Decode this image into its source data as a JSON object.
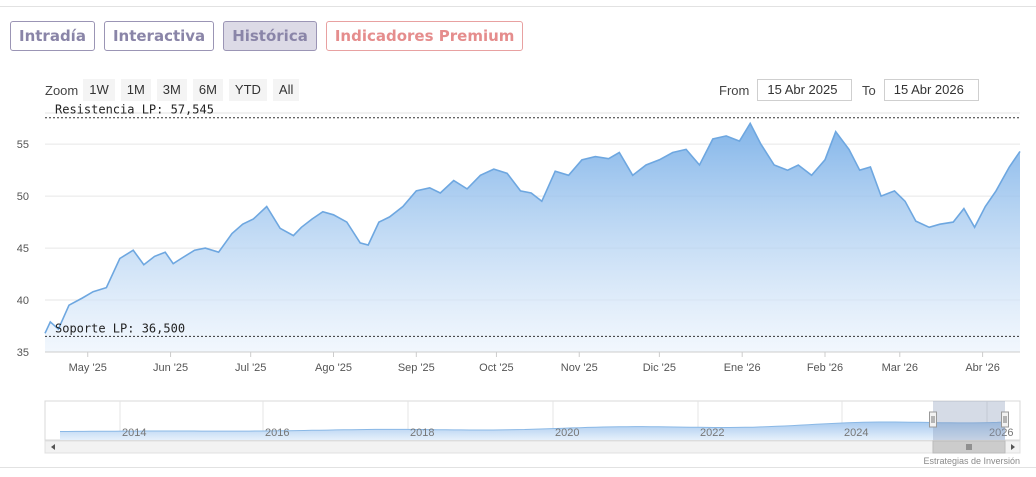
{
  "tabs": [
    {
      "label": "Intradía",
      "active": false
    },
    {
      "label": "Interactiva",
      "active": false
    },
    {
      "label": "Histórica",
      "active": true
    },
    {
      "label": "Indicadores Premium",
      "active": false
    }
  ],
  "zoom": {
    "label": "Zoom",
    "buttons": [
      "1W",
      "1M",
      "3M",
      "6M",
      "YTD",
      "All"
    ]
  },
  "range": {
    "from_label": "From",
    "from_value": "15 Abr 2025",
    "to_label": "To",
    "to_value": "15 Abr 2026"
  },
  "credit": "Estrategias de Inversión",
  "chart_data": {
    "type": "area",
    "title": "",
    "xlabel": "",
    "ylabel": "",
    "ylim": [
      35,
      58
    ],
    "yticks": [
      35,
      40,
      45,
      50,
      55
    ],
    "x_tick_labels": [
      "May '25",
      "Jun '25",
      "Jul '25",
      "Ago '25",
      "Sep '25",
      "Oct '25",
      "Nov '25",
      "Dic '25",
      "Ene '26",
      "Feb '26",
      "Mar '26",
      "Abr '26"
    ],
    "x_tick_dates": [
      "2025-05-01",
      "2025-06-01",
      "2025-07-01",
      "2025-08-01",
      "2025-09-01",
      "2025-10-01",
      "2025-11-01",
      "2025-12-01",
      "2026-01-01",
      "2026-02-01",
      "2026-03-01",
      "2026-04-01"
    ],
    "xlim": [
      "2025-04-15",
      "2026-04-15"
    ],
    "grid": true,
    "lines": [
      {
        "label": "Resistencia LP: 57,545",
        "value": 57.545
      },
      {
        "label": "Soporte LP: 36,500",
        "value": 36.5
      }
    ],
    "series": [
      {
        "x": [
          "2025-04-15",
          "2025-04-17",
          "2025-04-20",
          "2025-04-24",
          "2025-04-29",
          "2025-05-03",
          "2025-05-08",
          "2025-05-13",
          "2025-05-18",
          "2025-05-22",
          "2025-05-26",
          "2025-05-30",
          "2025-06-02",
          "2025-06-05",
          "2025-06-10",
          "2025-06-14",
          "2025-06-19",
          "2025-06-24",
          "2025-06-28",
          "2025-07-02",
          "2025-07-07",
          "2025-07-12",
          "2025-07-17",
          "2025-07-20",
          "2025-07-24",
          "2025-07-28",
          "2025-08-01",
          "2025-08-06",
          "2025-08-11",
          "2025-08-14",
          "2025-08-18",
          "2025-08-22",
          "2025-08-27",
          "2025-09-01",
          "2025-09-06",
          "2025-09-10",
          "2025-09-15",
          "2025-09-20",
          "2025-09-25",
          "2025-09-30",
          "2025-10-05",
          "2025-10-10",
          "2025-10-14",
          "2025-10-18",
          "2025-10-23",
          "2025-10-28",
          "2025-11-02",
          "2025-11-07",
          "2025-11-12",
          "2025-11-16",
          "2025-11-21",
          "2025-11-26",
          "2025-12-01",
          "2025-12-06",
          "2025-12-11",
          "2025-12-16",
          "2025-12-21",
          "2025-12-26",
          "2025-12-31",
          "2026-01-04",
          "2026-01-08",
          "2026-01-13",
          "2026-01-18",
          "2026-01-22",
          "2026-01-27",
          "2026-02-01",
          "2026-02-05",
          "2026-02-10",
          "2026-02-14",
          "2026-02-18",
          "2026-02-22",
          "2026-02-27",
          "2026-03-03",
          "2026-03-07",
          "2026-03-12",
          "2026-03-16",
          "2026-03-21",
          "2026-03-25",
          "2026-03-29",
          "2026-04-02",
          "2026-04-06",
          "2026-04-11",
          "2026-04-15"
        ],
        "values": [
          36.8,
          37.9,
          37.2,
          39.5,
          40.2,
          40.8,
          41.2,
          44.0,
          44.8,
          43.4,
          44.2,
          44.6,
          43.5,
          44.0,
          44.8,
          45.0,
          44.6,
          46.4,
          47.3,
          47.8,
          49.0,
          46.9,
          46.2,
          47.0,
          47.8,
          48.5,
          48.2,
          47.5,
          45.5,
          45.3,
          47.5,
          48.0,
          49.0,
          50.5,
          50.8,
          50.3,
          51.5,
          50.7,
          52.0,
          52.6,
          52.2,
          50.5,
          50.3,
          49.5,
          52.4,
          52.0,
          53.5,
          53.8,
          53.6,
          54.2,
          52.0,
          53.0,
          53.5,
          54.2,
          54.5,
          53.0,
          55.5,
          55.8,
          55.3,
          57.0,
          55.0,
          53.0,
          52.5,
          53.0,
          52.0,
          53.5,
          56.2,
          54.5,
          52.5,
          52.8,
          50.0,
          50.5,
          49.5,
          47.6,
          47.0,
          47.3,
          47.5,
          48.8,
          47.0,
          49.0,
          50.5,
          52.8,
          54.3
        ]
      }
    ],
    "navigator": {
      "x_tick_labels": [
        "2014",
        "2016",
        "2018",
        "2020",
        "2022",
        "2024",
        "2026"
      ]
    }
  }
}
